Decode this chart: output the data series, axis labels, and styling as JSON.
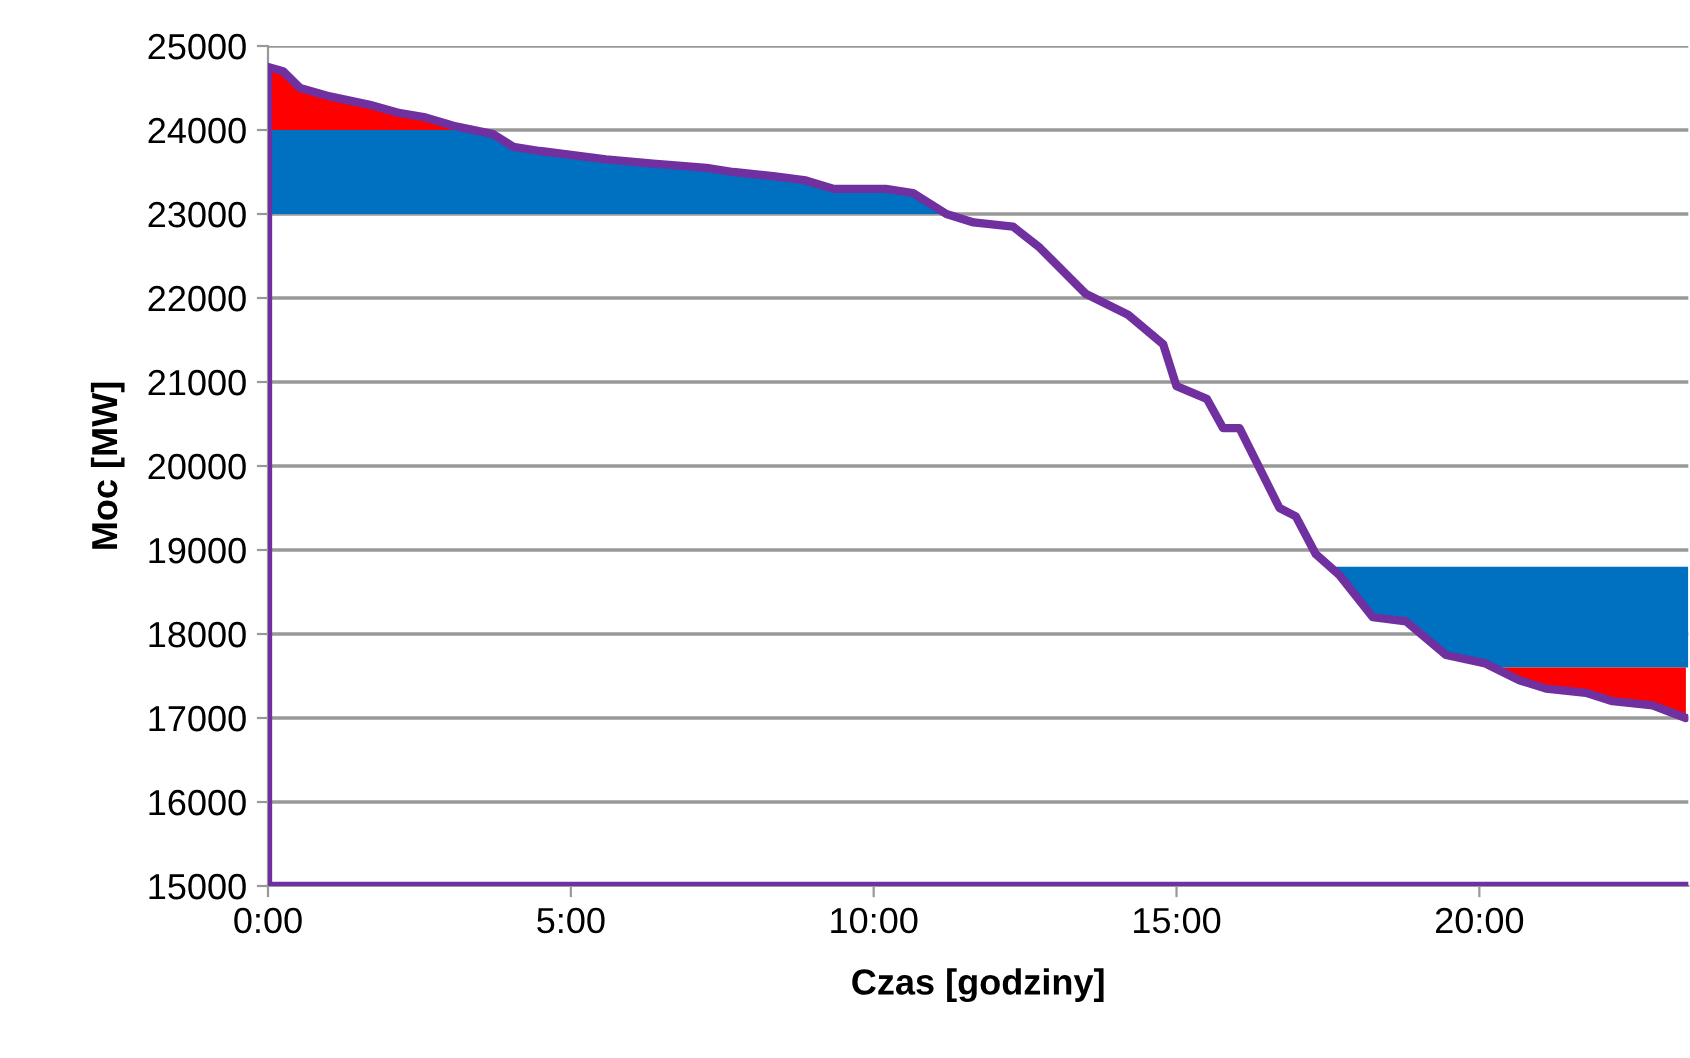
{
  "chart_data": {
    "type": "line",
    "xlabel": "Czas [godziny]",
    "ylabel": "Moc [MW]",
    "xlim": [
      0,
      23.45
    ],
    "ylim": [
      15000,
      25000
    ],
    "xticks": [
      {
        "value": 0,
        "label": "0:00"
      },
      {
        "value": 5,
        "label": "5:00"
      },
      {
        "value": 10,
        "label": "10:00"
      },
      {
        "value": 15,
        "label": "15:00"
      },
      {
        "value": 20,
        "label": "20:00"
      }
    ],
    "yticks": [
      15000,
      16000,
      17000,
      18000,
      19000,
      20000,
      21000,
      22000,
      23000,
      24000,
      25000
    ],
    "grid": "y",
    "marker": "none",
    "line_style": "solid",
    "ref_lines": [
      {
        "axis": "y",
        "value": 15000,
        "color": "#7030a0"
      }
    ],
    "series": [
      {
        "color": "#ff0000",
        "x": [
          0,
          0.25,
          0.53,
          1.02,
          1.68,
          2.18,
          2.6,
          3.06,
          3.15
        ],
        "values": [
          null,
          null,
          null,
          null,
          null,
          null,
          null,
          null,
          null
        ],
        "upper": [
          24750,
          24700,
          24500,
          24400,
          24300,
          24200,
          24150,
          24050,
          24000
        ],
        "lower": [
          24000,
          24000,
          24000,
          24000,
          24000,
          24000,
          24000,
          24000,
          24000
        ]
      },
      {
        "color": "#0070c0",
        "x": [
          0,
          3.15,
          3.72,
          4.05,
          4.49,
          5.58,
          6.36,
          7.24,
          7.68,
          8.34,
          8.88,
          9.33,
          10.2,
          10.65,
          11.1
        ],
        "values": [
          null,
          null,
          null,
          null,
          null,
          null,
          null,
          null,
          null,
          null,
          null,
          null,
          null,
          null,
          null
        ],
        "upper": [
          24000,
          24000,
          23950,
          23800,
          23750,
          23650,
          23600,
          23550,
          23500,
          23450,
          23400,
          23300,
          23300,
          23250,
          23000
        ],
        "lower": [
          23000,
          23000,
          23000,
          23000,
          23000,
          23000,
          23000,
          23000,
          23000,
          23000,
          23000,
          23000,
          23000,
          23000,
          23000
        ]
      },
      {
        "color": "#0070c0",
        "x": [
          17.6,
          17.69,
          18.24,
          18.79,
          19.45,
          20.1,
          20.15,
          23.45
        ],
        "values": [
          null,
          null,
          null,
          null,
          null,
          null,
          null,
          null
        ],
        "upper": [
          18800,
          18800,
          18800,
          18800,
          18800,
          18800,
          18800,
          18800
        ],
        "lower": [
          18800,
          18700,
          18200,
          18150,
          17750,
          17650,
          17600,
          17600
        ]
      },
      {
        "color": "#ff0000",
        "x": [
          20.15,
          20.66,
          21.1,
          21.76,
          22.2,
          22.86,
          23.41
        ],
        "values": [
          null,
          null,
          null,
          null,
          null,
          null,
          null
        ],
        "upper": [
          17600,
          17600,
          17600,
          17600,
          17600,
          17600,
          17600
        ],
        "lower": [
          17600,
          17450,
          17350,
          17300,
          17200,
          17150,
          17000
        ]
      },
      {
        "color": "#7030a0",
        "x": [
          0,
          0,
          0.25,
          0.53,
          1.02,
          1.68,
          2.18,
          2.6,
          3.06,
          3.72,
          4.05,
          4.49,
          5.58,
          6.36,
          7.24,
          7.68,
          8.34,
          8.88,
          9.33,
          10.2,
          10.65,
          11.2,
          11.65,
          12.3,
          12.74,
          13.5,
          14.2,
          14.78,
          15.0,
          15.5,
          15.77,
          16.04,
          16.7,
          16.97,
          17.3,
          17.69,
          18.24,
          18.79,
          19.45,
          20.1,
          20.66,
          21.1,
          21.76,
          22.2,
          22.86,
          23.41
        ],
        "values": [
          15000,
          24750,
          24700,
          24500,
          24400,
          24300,
          24200,
          24150,
          24050,
          23950,
          23800,
          23750,
          23650,
          23600,
          23550,
          23500,
          23450,
          23400,
          23300,
          23300,
          23250,
          23000,
          22900,
          22850,
          22600,
          22050,
          21800,
          21450,
          20950,
          20800,
          20450,
          20450,
          19500,
          19400,
          18950,
          18700,
          18200,
          18150,
          17750,
          17650,
          17450,
          17350,
          17300,
          17200,
          17150,
          17000
        ]
      }
    ]
  }
}
